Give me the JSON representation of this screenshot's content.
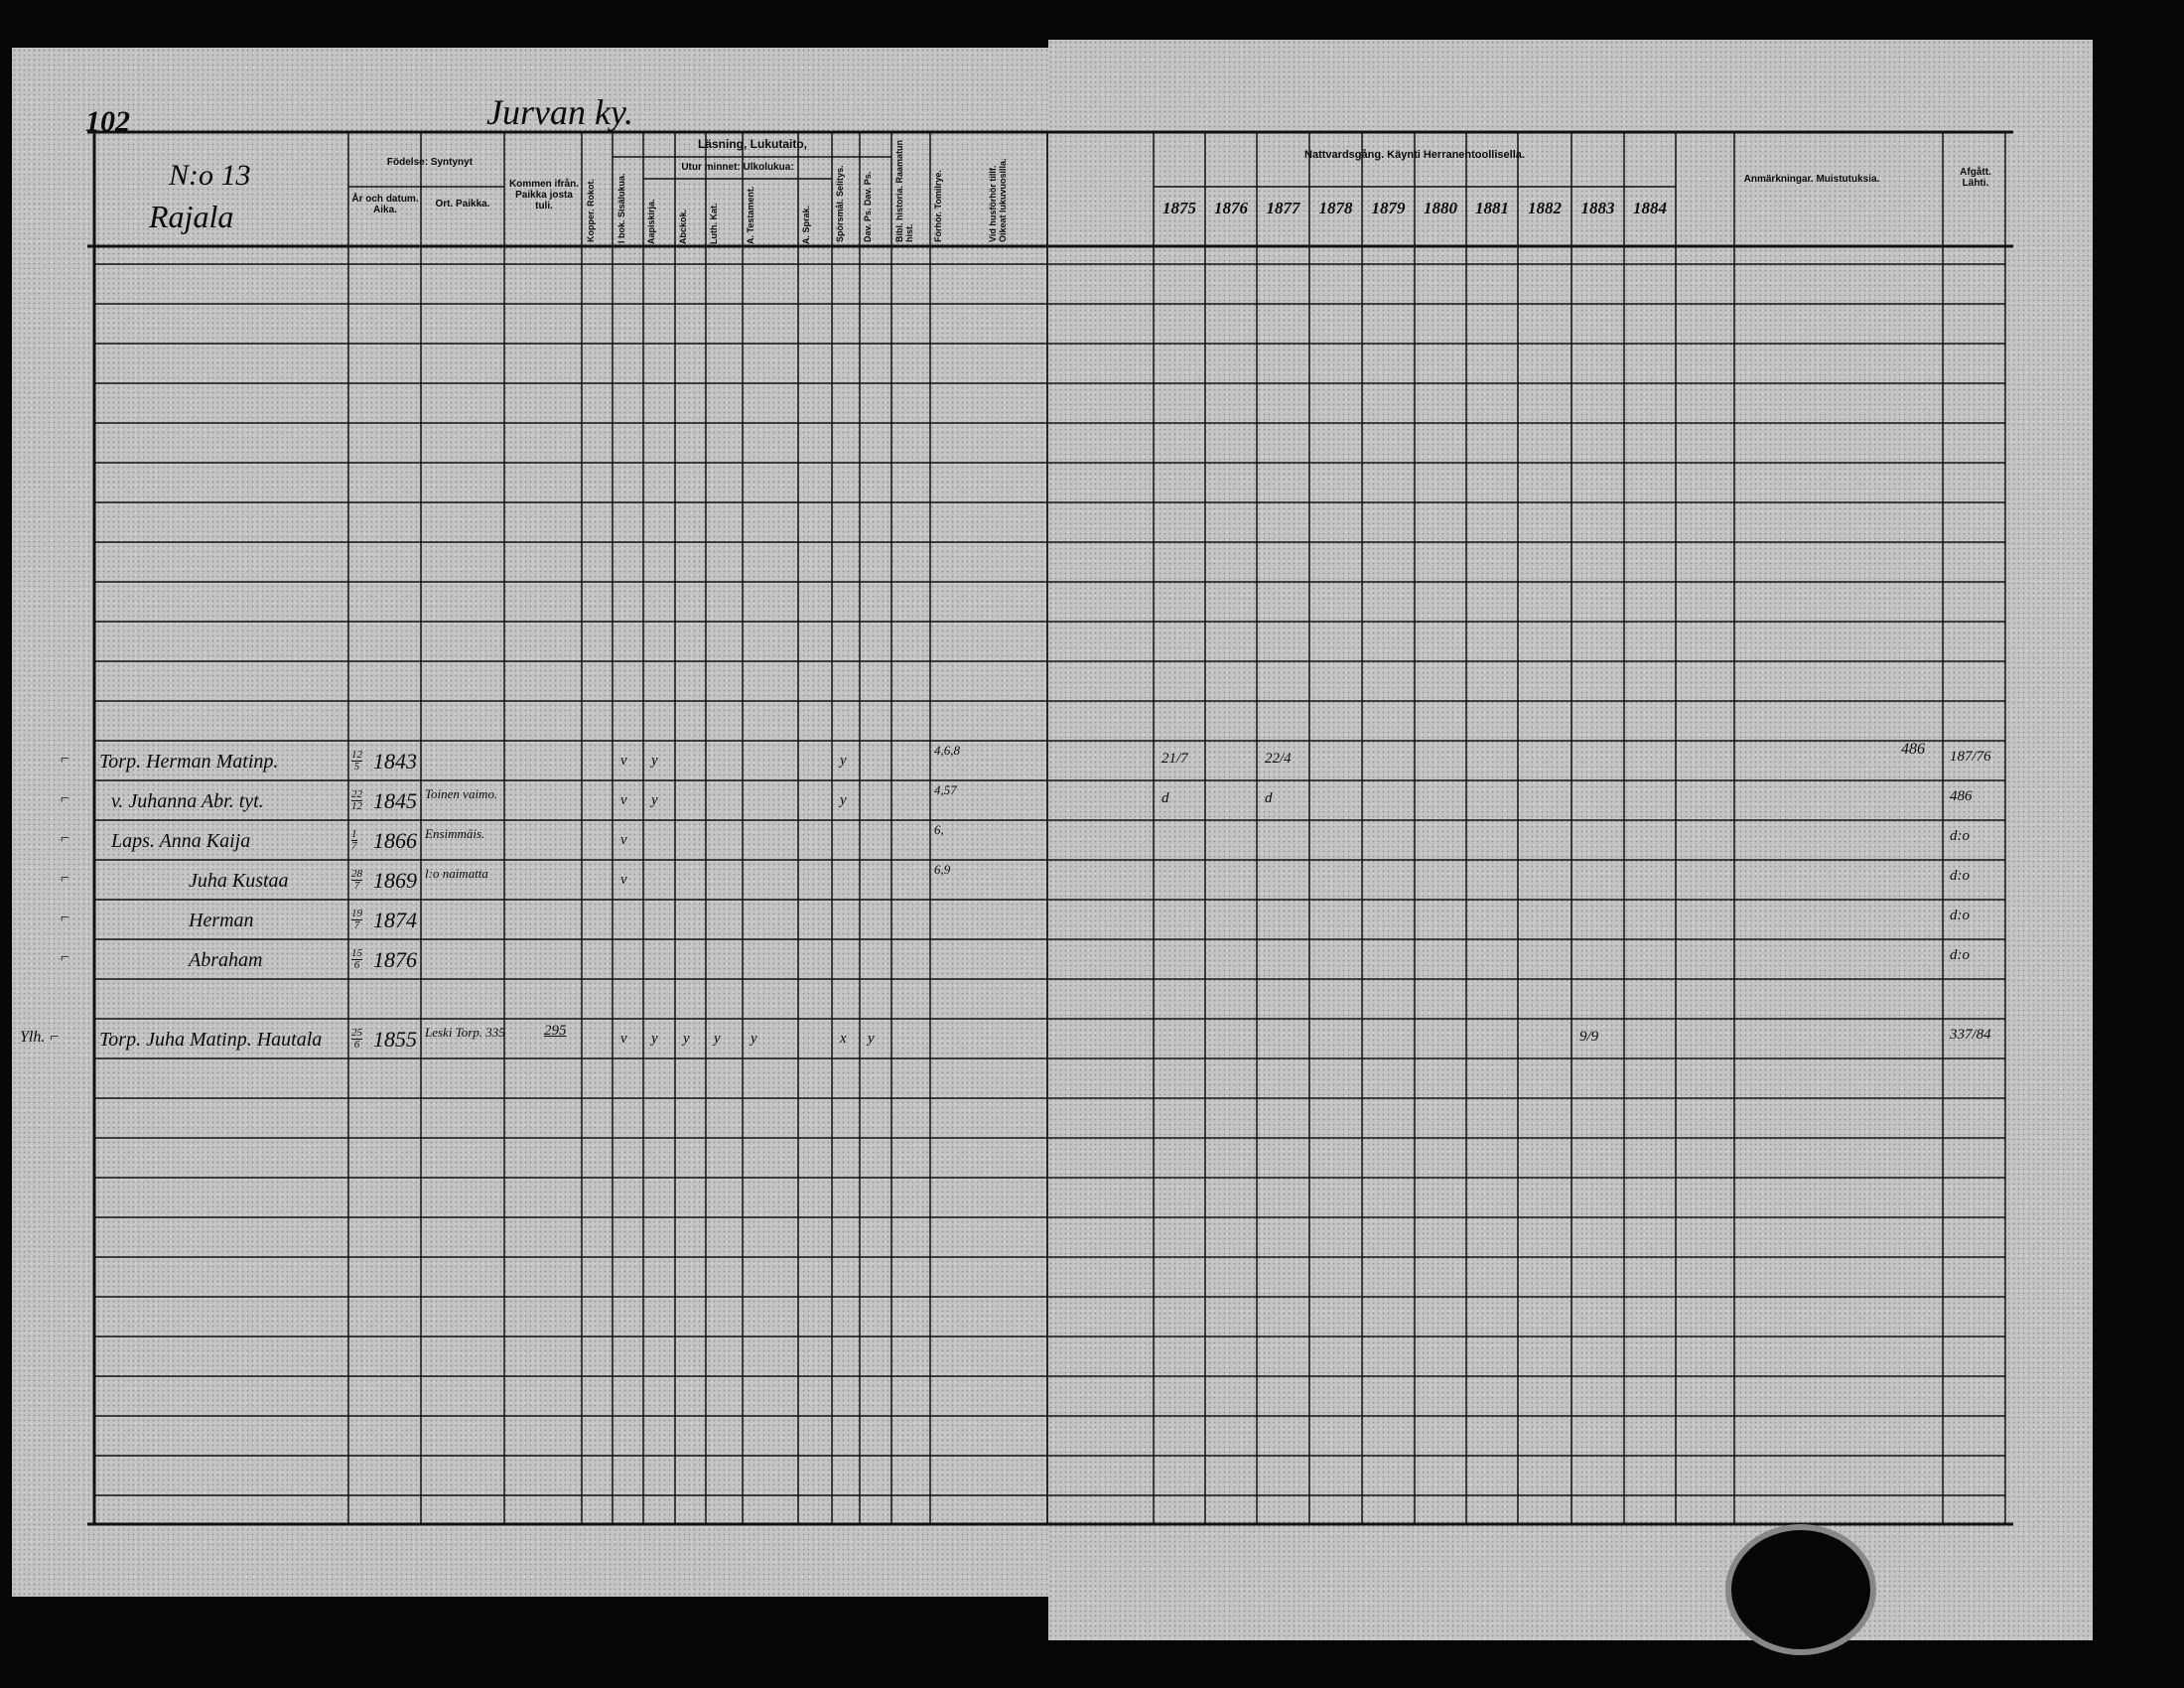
{
  "header": {
    "page_number": "102",
    "village": "Jurvan ky.",
    "house_number": "N:o 13",
    "house_name": "Rajala"
  },
  "left_columns": {
    "birth": "Födelse: Syntynyt",
    "date": "År och datum. Aika.",
    "place": "Ort. Paikka.",
    "came_from": "Kommen ifrån. Paikka josta tuli.",
    "vaccinated": "Kopper. Rokot.",
    "reading": "Läsning, Lukutaito,",
    "from_book": "I bok. Sisälukua.",
    "by_heart": "Utur minnet: Ulkolukua:",
    "sub": [
      "Aapiskirja.",
      "Abckok.",
      "Luth. Kat.",
      "A. Testament.",
      "A. Sprak.",
      "Spörsmål. Selitys.",
      "Dav. Ps. Dav. Ps.",
      "Bibl. historia. Raamatun hist.",
      "Förhör. Tomilrye.",
      "Vid husförhör tillf. Oikeat lukuvuosilla."
    ]
  },
  "right_columns": {
    "communion": "Nattvardsgång. Käynti Herranehtoollisella.",
    "years": [
      "1875",
      "1876",
      "1877",
      "1878",
      "1879",
      "1880",
      "1881",
      "1882",
      "1883",
      "1884"
    ],
    "remarks": "Anmärkningar. Muistutuksia.",
    "departed": "Afgått. Lähti."
  },
  "entries": [
    {
      "margin": "⌐",
      "name": "Torp. Herman Matinp.",
      "day": "12",
      "month": "5",
      "year": "1843",
      "note": "",
      "moved": "",
      "marks": [
        "v",
        "y",
        "",
        "",
        "",
        "",
        "y",
        "",
        ""
      ],
      "score": "4,6,8",
      "communion": {
        "1875": "21/7",
        "1877": "22/4"
      },
      "remark": "486",
      "departed": "187/76"
    },
    {
      "margin": "⌐",
      "name": "v. Juhanna Abr. tyt.",
      "day": "22",
      "month": "12",
      "year": "1845",
      "note": "Toinen vaimo.",
      "moved": "",
      "marks": [
        "v",
        "y",
        "",
        "",
        "",
        "",
        "y",
        "",
        ""
      ],
      "score": "4,57",
      "communion": {
        "1875": "d",
        "1877": "d"
      },
      "remark": "",
      "departed": "486"
    },
    {
      "margin": "⌐",
      "name": "Laps. Anna Kaija",
      "day": "1",
      "month": "7",
      "year": "1866",
      "note": "Ensimmäis.",
      "moved": "",
      "marks": [
        "v",
        "",
        "",
        "",
        "",
        "",
        "",
        "",
        ""
      ],
      "score": "6,",
      "communion": {},
      "remark": "",
      "departed": "d:o"
    },
    {
      "margin": "⌐",
      "name": "Juha Kustaa",
      "day": "28",
      "month": "7",
      "year": "1869",
      "note": "l:o naimatta",
      "moved": "",
      "marks": [
        "v",
        "",
        "",
        "",
        "",
        "",
        "",
        "",
        ""
      ],
      "score": "6,9",
      "communion": {},
      "remark": "",
      "departed": "d:o"
    },
    {
      "margin": "⌐",
      "name": "Herman",
      "day": "19",
      "month": "7",
      "year": "1874",
      "note": "",
      "moved": "",
      "marks": [
        "",
        "",
        "",
        "",
        "",
        "",
        "",
        "",
        ""
      ],
      "score": "",
      "communion": {},
      "remark": "",
      "departed": "d:o"
    },
    {
      "margin": "⌐",
      "name": "Abraham",
      "day": "15",
      "month": "6",
      "year": "1876",
      "note": "",
      "moved": "",
      "marks": [
        "",
        "",
        "",
        "",
        "",
        "",
        "",
        "",
        ""
      ],
      "score": "",
      "communion": {},
      "remark": "",
      "departed": "d:o"
    },
    {
      "margin": "Ylh. ⌐",
      "name": "Torp. Juha Matinp. Hautala",
      "day": "25",
      "month": "6",
      "year": "1855",
      "note": "Leski Torp. 335",
      "moved": "295",
      "marks": [
        "v",
        "y",
        "y",
        "y",
        "y",
        "",
        "x",
        "y",
        ""
      ],
      "score": "",
      "communion": {
        "1883": "9/9"
      },
      "remark": "",
      "departed": "337/84"
    }
  ]
}
